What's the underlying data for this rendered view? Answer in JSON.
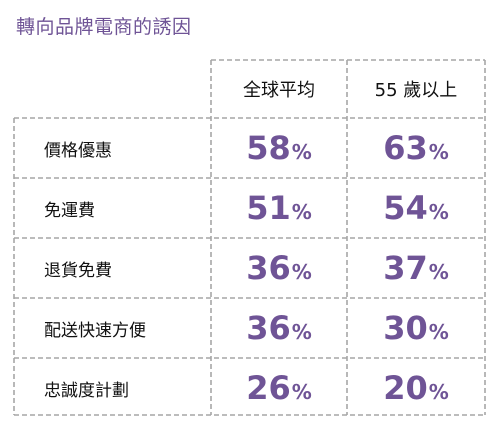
{
  "title": "轉向品牌電商的誘因",
  "colors": {
    "accent": "#6f5496",
    "grid": "#a6a6a6",
    "text": "#111111"
  },
  "chart_data": {
    "type": "table",
    "columns": [
      "全球平均",
      "55 歲以上"
    ],
    "rows": [
      {
        "label": "價格優惠",
        "values": [
          58,
          63
        ]
      },
      {
        "label": "免運費",
        "values": [
          51,
          54
        ]
      },
      {
        "label": "退貨免費",
        "values": [
          36,
          37
        ]
      },
      {
        "label": "配送快速方便",
        "values": [
          36,
          30
        ]
      },
      {
        "label": "忠誠度計劃",
        "values": [
          26,
          20
        ]
      }
    ],
    "unit": "%"
  }
}
